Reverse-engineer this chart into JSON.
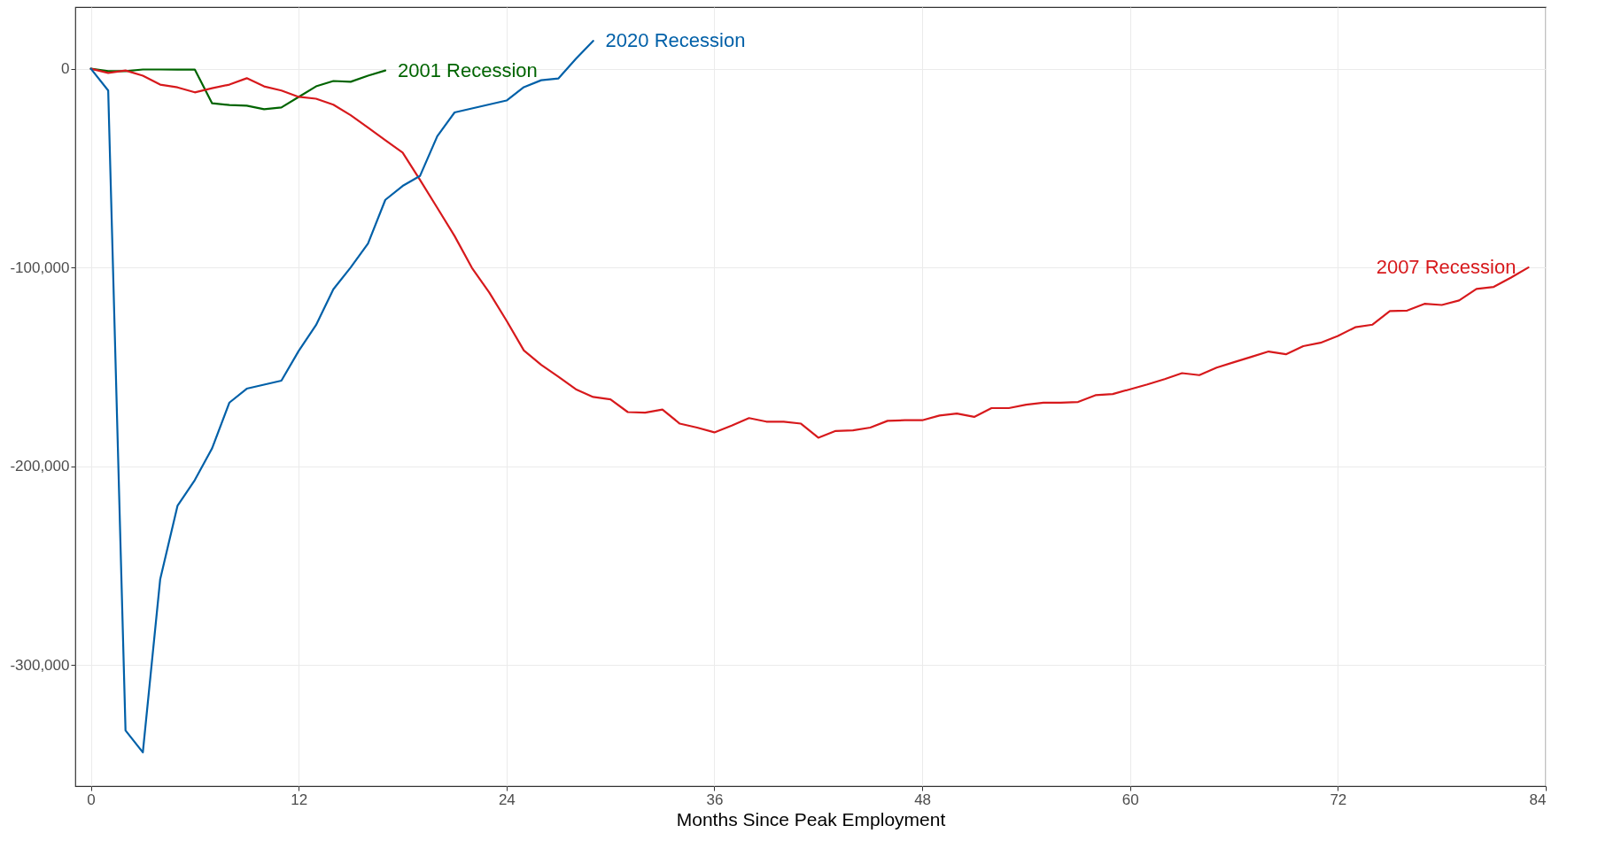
{
  "chart_data": {
    "type": "line",
    "xlabel": "Months Since Peak Employment",
    "xlim": [
      -0.9,
      84
    ],
    "xticks": [
      0,
      12,
      24,
      36,
      48,
      60,
      72,
      84
    ],
    "ylim": [
      -361000,
      31000
    ],
    "yticks": [
      {
        "value": -300000,
        "label": "-300,000"
      },
      {
        "value": -200000,
        "label": "-200,000"
      },
      {
        "value": -100000,
        "label": "-100,000"
      },
      0
    ],
    "grid": true,
    "legend": false,
    "line_style": "solid",
    "series": [
      {
        "name": "2001 Recession",
        "color": "#006400",
        "x": [
          0,
          1,
          2,
          3,
          4,
          5,
          6,
          7,
          8,
          9,
          10,
          11,
          12,
          13,
          14,
          15,
          16,
          17
        ],
        "values": [
          0,
          -1200,
          -1200,
          -400,
          -400,
          -500,
          -400,
          -17400,
          -18300,
          -18600,
          -20400,
          -19500,
          -14200,
          -8900,
          -6200,
          -6600,
          -3500,
          -900
        ]
      },
      {
        "name": "2007 Recession",
        "color": "#d7191c",
        "x": [
          0,
          1,
          2,
          3,
          4,
          5,
          6,
          7,
          8,
          9,
          10,
          11,
          12,
          13,
          14,
          15,
          16,
          17,
          18,
          19,
          20,
          21,
          22,
          23,
          24,
          25,
          26,
          27,
          28,
          29,
          30,
          31,
          32,
          33,
          34,
          35,
          36,
          37,
          38,
          39,
          40,
          41,
          42,
          43,
          44,
          45,
          46,
          47,
          48,
          49,
          50,
          51,
          52,
          53,
          54,
          55,
          56,
          57,
          58,
          59,
          60,
          61,
          62,
          63,
          64,
          65,
          66,
          67,
          68,
          69,
          70,
          71,
          72,
          73,
          74,
          75,
          76,
          77,
          78,
          79,
          80,
          81,
          82,
          83
        ],
        "values": [
          0,
          -2100,
          -900,
          -3500,
          -8000,
          -9400,
          -11900,
          -9800,
          -8000,
          -4800,
          -8900,
          -11000,
          -14200,
          -15100,
          -18100,
          -23400,
          -29600,
          -36000,
          -42200,
          -55900,
          -70000,
          -84200,
          -100200,
          -112600,
          -126800,
          -141800,
          -149000,
          -155000,
          -161300,
          -165200,
          -166400,
          -172800,
          -173100,
          -171500,
          -178600,
          -180600,
          -183000,
          -179600,
          -175800,
          -177600,
          -177600,
          -178600,
          -185700,
          -182300,
          -182000,
          -180600,
          -177200,
          -176900,
          -176900,
          -174500,
          -173500,
          -175200,
          -170800,
          -170800,
          -169100,
          -168100,
          -168100,
          -167700,
          -164300,
          -163700,
          -161300,
          -158900,
          -156200,
          -153200,
          -154200,
          -150400,
          -147700,
          -145000,
          -142300,
          -143700,
          -139600,
          -137900,
          -134500,
          -130100,
          -128800,
          -122000,
          -121700,
          -118300,
          -118900,
          -116600,
          -110800,
          -109800,
          -105100,
          -100000
        ]
      },
      {
        "name": "2020 Recession",
        "color": "#0060a8",
        "x": [
          0,
          1,
          2,
          3,
          4,
          5,
          6,
          7,
          8,
          9,
          10,
          11,
          12,
          13,
          14,
          15,
          16,
          17,
          18,
          19,
          20,
          21,
          22,
          23,
          24,
          25,
          26,
          27,
          28,
          29
        ],
        "values": [
          0,
          -11000,
          -333000,
          -344000,
          -257000,
          -220000,
          -207000,
          -191000,
          -168000,
          -161000,
          -159000,
          -157000,
          -142000,
          -129000,
          -111000,
          -100000,
          -88000,
          -66000,
          -59000,
          -54000,
          -34000,
          -22000,
          -20000,
          -18000,
          -16000,
          -9300,
          -5800,
          -4900,
          4900,
          14000
        ]
      }
    ]
  }
}
